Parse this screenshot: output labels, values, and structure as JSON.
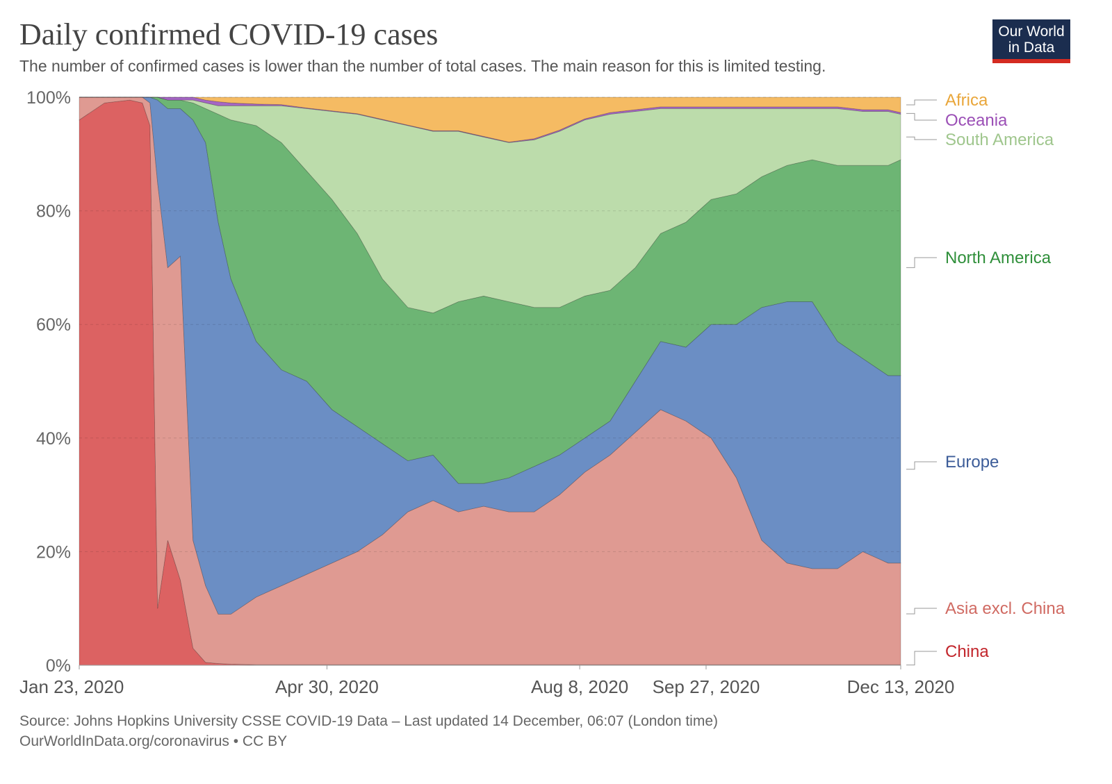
{
  "header": {
    "title": "Daily confirmed COVID-19 cases",
    "subtitle": "The number of confirmed cases is lower than the number of total cases. The main reason for this is limited testing.",
    "logo_line1": "Our World",
    "logo_line2": "in Data"
  },
  "footer": {
    "source": "Source: Johns Hopkins University CSSE COVID-19 Data – Last updated 14 December, 06:07 (London time)",
    "license": "OurWorldInData.org/coronavirus • CC BY"
  },
  "chart_data": {
    "type": "area",
    "stacked": "100%",
    "title": "Daily confirmed COVID-19 cases",
    "ylim": [
      0,
      100
    ],
    "y_ticks": [
      "0%",
      "20%",
      "40%",
      "60%",
      "80%",
      "100%"
    ],
    "x_ticks": [
      {
        "date": "2020-01-23",
        "label": "Jan 23, 2020"
      },
      {
        "date": "2020-04-30",
        "label": "Apr 30, 2020"
      },
      {
        "date": "2020-08-08",
        "label": "Aug 8, 2020"
      },
      {
        "date": "2020-09-27",
        "label": "Sep 27, 2020"
      },
      {
        "date": "2020-12-13",
        "label": "Dec 13, 2020"
      }
    ],
    "grid": "horizontal dashed",
    "legend": "right, inline labels",
    "x": [
      "2020-01-23",
      "2020-02-02",
      "2020-02-12",
      "2020-02-17",
      "2020-02-20",
      "2020-02-23",
      "2020-02-27",
      "2020-03-03",
      "2020-03-08",
      "2020-03-13",
      "2020-03-18",
      "2020-03-23",
      "2020-04-02",
      "2020-04-12",
      "2020-04-22",
      "2020-05-02",
      "2020-05-12",
      "2020-05-22",
      "2020-06-01",
      "2020-06-11",
      "2020-06-21",
      "2020-07-01",
      "2020-07-11",
      "2020-07-21",
      "2020-07-31",
      "2020-08-10",
      "2020-08-20",
      "2020-08-30",
      "2020-09-09",
      "2020-09-19",
      "2020-09-29",
      "2020-10-09",
      "2020-10-19",
      "2020-10-29",
      "2020-11-08",
      "2020-11-18",
      "2020-11-28",
      "2020-12-08",
      "2020-12-13"
    ],
    "series": [
      {
        "name": "China",
        "color": "#dc6262",
        "label_color": "#c2252b",
        "values": [
          96,
          99,
          99.5,
          99,
          95,
          10,
          22,
          15,
          3,
          0.5,
          0.3,
          0.2,
          0.1,
          0.1,
          0.1,
          0.1,
          0.1,
          0.1,
          0.1,
          0.1,
          0.1,
          0.1,
          0.1,
          0.1,
          0.1,
          0.1,
          0.1,
          0.1,
          0.1,
          0.1,
          0.1,
          0.1,
          0.1,
          0.1,
          0.1,
          0.1,
          0.1,
          0.1,
          0.1
        ]
      },
      {
        "name": "Asia excl. China",
        "color": "#df9a92",
        "label_color": "#d06a62",
        "values": [
          4,
          1,
          0.5,
          1,
          4,
          75,
          48,
          57,
          19,
          13.5,
          8.7,
          8.8,
          11.9,
          13.9,
          15.9,
          17.9,
          19.9,
          22.9,
          26.9,
          28.9,
          26.9,
          27.9,
          26.9,
          26.9,
          29.9,
          33.9,
          36.9,
          40.9,
          44.9,
          42.9,
          39.9,
          32.9,
          21.9,
          17.9,
          16.9,
          16.9,
          19.9,
          17.9,
          17.9
        ]
      },
      {
        "name": "Europe",
        "color": "#6b8ec4",
        "label_color": "#3d5d99",
        "values": [
          0,
          0,
          0,
          0,
          1,
          14.5,
          28,
          26,
          74,
          78,
          69,
          59,
          45,
          38,
          34,
          27,
          22,
          16,
          9,
          8,
          5,
          4,
          6,
          8,
          7,
          6,
          6,
          9,
          12,
          13,
          20,
          27,
          41,
          46,
          47,
          40,
          34,
          33,
          33
        ]
      },
      {
        "name": "North America",
        "color": "#6db574",
        "label_color": "#2f8f3a",
        "values": [
          0,
          0,
          0,
          0,
          0,
          0.5,
          1.5,
          1.5,
          3,
          6,
          19,
          28,
          38,
          40,
          37,
          37,
          34,
          29,
          27,
          25,
          32,
          33,
          31,
          28,
          26,
          25,
          23,
          20,
          19,
          22,
          22,
          23,
          23,
          24,
          25,
          31,
          34,
          37,
          38
        ]
      },
      {
        "name": "South America",
        "color": "#bcdcab",
        "label_color": "#9fc68d",
        "values": [
          0,
          0,
          0,
          0,
          0,
          0,
          0,
          0,
          0.5,
          1,
          1.5,
          2.5,
          3.5,
          6.5,
          11,
          15.5,
          21,
          28,
          32,
          32,
          30,
          28,
          28,
          29.5,
          31,
          31,
          31,
          27.5,
          22,
          20,
          16,
          15,
          12,
          10,
          9,
          10,
          9.5,
          9.5,
          8
        ]
      },
      {
        "name": "Oceania",
        "color": "#a566c4",
        "label_color": "#9b4fb6",
        "values": [
          0,
          0,
          0,
          0,
          0,
          0,
          0.5,
          0.5,
          0.5,
          0.5,
          0.7,
          0.5,
          0.3,
          0.2,
          0.1,
          0.1,
          0.1,
          0.1,
          0.1,
          0.1,
          0.1,
          0.1,
          0.1,
          0.2,
          0.2,
          0.2,
          0.3,
          0.3,
          0.3,
          0.3,
          0.3,
          0.3,
          0.3,
          0.3,
          0.3,
          0.3,
          0.3,
          0.3,
          0.3
        ]
      },
      {
        "name": "Africa",
        "color": "#f5bb63",
        "label_color": "#e9a63a",
        "values": [
          0,
          0,
          0,
          0,
          0,
          0,
          0,
          0,
          0,
          0.5,
          0.8,
          1,
          1.2,
          1.3,
          1.9,
          2.4,
          2.9,
          3.9,
          4.9,
          5.9,
          5.9,
          6.9,
          7.9,
          7.3,
          5.8,
          3.8,
          2.7,
          2.2,
          1.7,
          1.7,
          1.7,
          1.7,
          1.7,
          1.7,
          1.7,
          1.7,
          2.2,
          2.2,
          2.7
        ]
      }
    ]
  }
}
